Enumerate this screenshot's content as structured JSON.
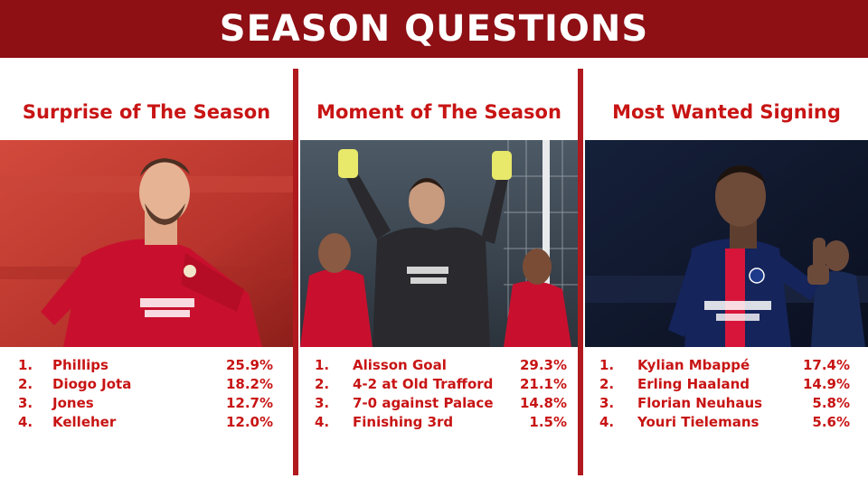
{
  "header": {
    "title": "SEASON QUESTIONS"
  },
  "colors": {
    "banner": "#8e0f14",
    "accent": "#c81414",
    "divider": "#b01a1f"
  },
  "columns": [
    {
      "title": "Surprise of The Season",
      "image": "player-in-red-kit-photo",
      "rankings": [
        {
          "rank": "1.",
          "name": "Phillips",
          "pct": "25.9%"
        },
        {
          "rank": "2.",
          "name": "Diogo Jota",
          "pct": "18.2%"
        },
        {
          "rank": "3.",
          "name": "Jones",
          "pct": "12.7%"
        },
        {
          "rank": "4.",
          "name": "Kelleher",
          "pct": "12.0%"
        }
      ]
    },
    {
      "title": "Moment of The Season",
      "image": "goalkeeper-celebration-photo",
      "rankings": [
        {
          "rank": "1.",
          "name": "Alisson Goal",
          "pct": "29.3%"
        },
        {
          "rank": "2.",
          "name": "4-2 at Old Trafford",
          "pct": "21.1%"
        },
        {
          "rank": "3.",
          "name": "7-0 against Palace",
          "pct": "14.8%"
        },
        {
          "rank": "4.",
          "name": "Finishing 3rd",
          "pct": "1.5%"
        }
      ]
    },
    {
      "title": "Most Wanted Signing",
      "image": "player-in-navy-kit-thumbs-up-photo",
      "rankings": [
        {
          "rank": "1.",
          "name": "Kylian Mbappé",
          "pct": "17.4%"
        },
        {
          "rank": "2.",
          "name": "Erling Haaland",
          "pct": "14.9%"
        },
        {
          "rank": "3.",
          "name": "Florian Neuhaus",
          "pct": "5.8%"
        },
        {
          "rank": "4.",
          "name": "Youri Tielemans",
          "pct": "5.6%"
        }
      ]
    }
  ]
}
